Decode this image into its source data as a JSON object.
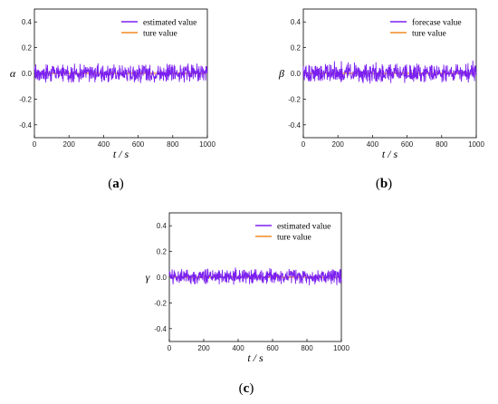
{
  "chart_data": [
    {
      "type": "line",
      "panel_label": "a",
      "xlabel": "t / s",
      "ylabel": "α",
      "xlim": [
        0,
        1000
      ],
      "ylim": [
        -0.5,
        0.5
      ],
      "xticks": [
        "0",
        "200",
        "400",
        "600",
        "800",
        "1000"
      ],
      "yticks": [
        "-0.4",
        "-0.2",
        "0.0",
        "0.2",
        "0.4"
      ],
      "legend_position": "top-right",
      "series": [
        {
          "name": "estimated value",
          "color": "#7b20f0",
          "noise_amplitude": 0.05,
          "values": [
            0.02,
            -0.03,
            0.04,
            -0.05,
            0.06,
            -0.02,
            0.05,
            -0.06,
            0.03,
            -0.04,
            0.07,
            -0.03,
            0.05,
            -0.05,
            0.04,
            -0.06,
            0.06,
            -0.02,
            0.05,
            -0.04
          ]
        },
        {
          "name": "ture value",
          "color": "#f08a24",
          "values": [
            0.0,
            0.0
          ]
        }
      ]
    },
    {
      "type": "line",
      "panel_label": "b",
      "xlabel": "t / s",
      "ylabel": "β",
      "xlim": [
        0,
        1000
      ],
      "ylim": [
        -0.5,
        0.5
      ],
      "xticks": [
        "0",
        "200",
        "400",
        "600",
        "800",
        "1000"
      ],
      "yticks": [
        "-0.4",
        "-0.2",
        "0.0",
        "0.2",
        "0.4"
      ],
      "legend_position": "top-right",
      "series": [
        {
          "name": "forecase value",
          "color": "#7b20f0",
          "noise_amplitude": 0.05,
          "values": [
            0.03,
            -0.04,
            0.05,
            -0.03,
            0.06,
            -0.05,
            0.04,
            -0.02,
            0.07,
            -0.05,
            0.1,
            -0.04,
            0.05,
            -0.06,
            0.04,
            -0.03,
            0.06,
            -0.05,
            0.04,
            -0.03
          ]
        },
        {
          "name": "ture value",
          "color": "#f08a24",
          "values": [
            0.0,
            0.0
          ]
        }
      ]
    },
    {
      "type": "line",
      "panel_label": "c",
      "xlabel": "t / s",
      "ylabel": "γ",
      "xlim": [
        0,
        1000
      ],
      "ylim": [
        -0.5,
        0.5
      ],
      "xticks": [
        "0",
        "200",
        "400",
        "600",
        "800",
        "1000"
      ],
      "yticks": [
        "-0.4",
        "-0.2",
        "0.0",
        "0.2",
        "0.4"
      ],
      "legend_position": "top-right",
      "series": [
        {
          "name": "estimated value",
          "color": "#7b20f0",
          "noise_amplitude": 0.04,
          "values": [
            0.02,
            -0.03,
            0.04,
            -0.04,
            0.05,
            -0.03,
            0.04,
            -0.05,
            0.06,
            -0.02,
            0.04,
            -0.04,
            0.07,
            -0.03,
            0.05,
            -0.04,
            0.06,
            -0.03,
            0.05,
            -0.04
          ]
        },
        {
          "name": "ture value",
          "color": "#f08a24",
          "values": [
            0.0,
            0.0
          ]
        }
      ]
    }
  ]
}
